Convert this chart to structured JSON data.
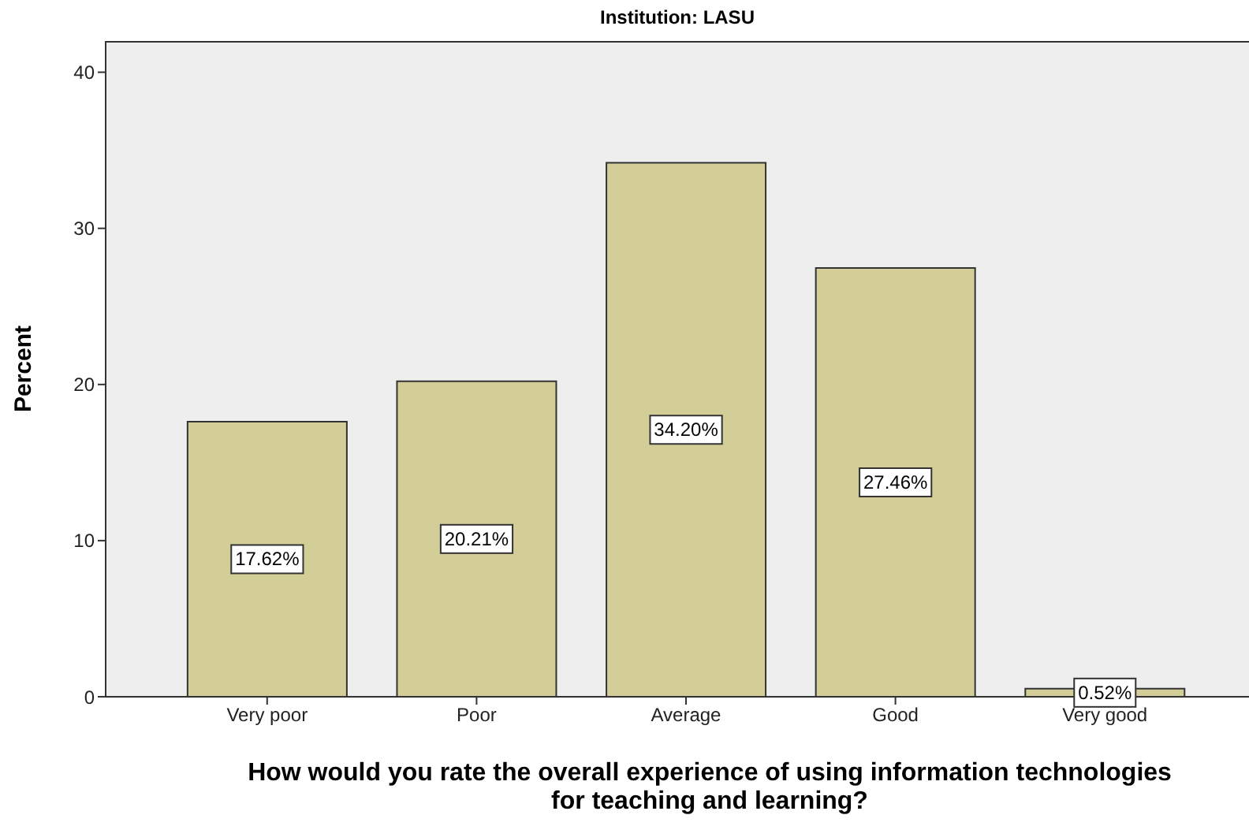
{
  "chart_data": {
    "type": "bar",
    "title": "Institution: LASU",
    "xlabel": "How would you rate the overall experience of using information technologies for teaching and learning?",
    "ylabel": "Percent",
    "categories": [
      "Very poor",
      "Poor",
      "Average",
      "Good",
      "Very good"
    ],
    "values": [
      17.62,
      20.21,
      34.2,
      27.46,
      0.52
    ],
    "value_labels": [
      "17.62%",
      "20.21%",
      "34.20%",
      "27.46%",
      "0.52%"
    ],
    "color": "#d3ce97",
    "ylim": [
      0,
      42
    ],
    "yticks": [
      0,
      10,
      20,
      30,
      40
    ],
    "grid": false,
    "legend": false
  }
}
